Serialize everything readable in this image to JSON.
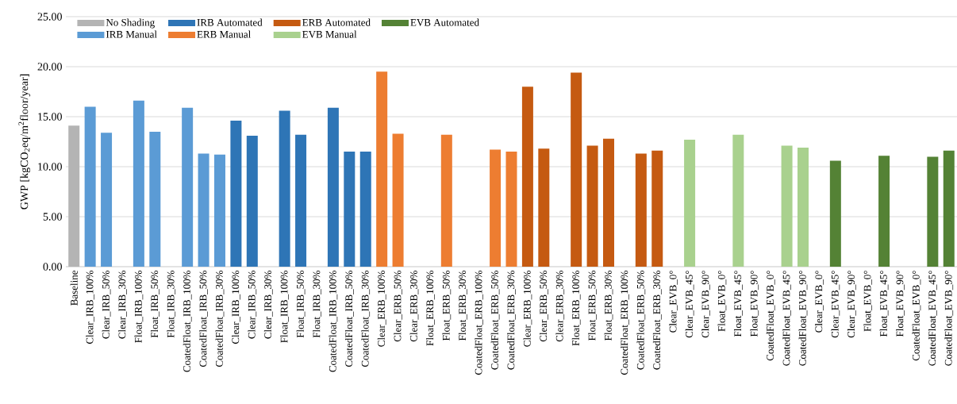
{
  "chart_data": {
    "type": "bar",
    "ylabel": "GWP [kgCO$_{2}$eq/m$^{2}$floor/year]",
    "categories": [
      "Baseline",
      "Clear_IRB_100%",
      "Clear_IRB_50%",
      "Clear_IRB_30%",
      "Float_IRB_100%",
      "Float_IRB_50%",
      "Float_IRB_30%",
      "CoatedFloat_IRB_100%",
      "CoatedFloat_IRB_50%",
      "CoatedFloat_IRB_30%",
      "Clear_IRB_100%",
      "Clear_IRB_50%",
      "Clear_IRB_30%",
      "Float_IRB_100%",
      "Float_IRB_50%",
      "Float_IRB_30%",
      "CoatedFloat_IRB_100%",
      "CoatedFloat_IRB_50%",
      "CoatedFloat_IRB_30%",
      "Clear_ERB_100%",
      "Clear_ERB_50%",
      "Clear_ERB_30%",
      "Float_ERB_100%",
      "Float_ERB_50%",
      "Float_ERB_30%",
      "CoatedFloat_ERB_100%",
      "CoatedFloat_ERB_50%",
      "CoatedFloat_ERB_30%",
      "Clear_ERB_100%",
      "Clear_ERB_50%",
      "Clear_ERB_30%",
      "Float_ERB_100%",
      "Float_ERB_50%",
      "Float_ERB_30%",
      "CoatedFloat_ERB_100%",
      "CoatedFloat_ERB_50%",
      "CoatedFloat_ERB_30%",
      "Clear_EVB_0°",
      "Clear_EVB_45°",
      "Clear_EVB_90°",
      "Float_EVB_0°",
      "Float_EVB_45°",
      "Float_EVB_90°",
      "CoatedFloat_EVB_0°",
      "CoatedFloat_EVB_45°",
      "CoatedFloat_EVB_90°",
      "Clear_EVB_0°",
      "Clear_EVB_45°",
      "Clear_EVB_90°",
      "Float_EVB_0°",
      "Float_EVB_45°",
      "Float_EVB_90°",
      "CoatedFloat_EVB_0°",
      "CoatedFloat_EVB_45°",
      "CoatedFloat_EVB_90°"
    ],
    "series": [
      {
        "name": "No Shading",
        "color": "#b4b4b4",
        "values": [
          14.1,
          null,
          null,
          null,
          null,
          null,
          null,
          null,
          null,
          null,
          null,
          null,
          null,
          null,
          null,
          null,
          null,
          null,
          null,
          null,
          null,
          null,
          null,
          null,
          null,
          null,
          null,
          null,
          null,
          null,
          null,
          null,
          null,
          null,
          null,
          null,
          null,
          null,
          null,
          null,
          null,
          null,
          null,
          null,
          null,
          null,
          null,
          null,
          null,
          null,
          null,
          null,
          null,
          null,
          null
        ]
      },
      {
        "name": "IRB Manual",
        "color": "#5b9bd5",
        "values": [
          null,
          16.0,
          13.4,
          null,
          16.6,
          13.5,
          null,
          15.9,
          11.3,
          11.2,
          null,
          null,
          null,
          null,
          null,
          null,
          null,
          null,
          null,
          null,
          null,
          null,
          null,
          null,
          null,
          null,
          null,
          null,
          null,
          null,
          null,
          null,
          null,
          null,
          null,
          null,
          null,
          null,
          null,
          null,
          null,
          null,
          null,
          null,
          null,
          null,
          null,
          null,
          null,
          null,
          null,
          null,
          null,
          null,
          null
        ]
      },
      {
        "name": "IRB Automated",
        "color": "#2e75b6",
        "values": [
          null,
          null,
          null,
          null,
          null,
          null,
          null,
          null,
          null,
          null,
          14.6,
          13.1,
          null,
          15.6,
          13.2,
          null,
          15.9,
          11.5,
          11.5,
          null,
          null,
          null,
          null,
          null,
          null,
          null,
          null,
          null,
          null,
          null,
          null,
          null,
          null,
          null,
          null,
          null,
          null,
          null,
          null,
          null,
          null,
          null,
          null,
          null,
          null,
          null,
          null,
          null,
          null,
          null,
          null,
          null,
          null,
          null,
          null
        ]
      },
      {
        "name": "ERB Manual",
        "color": "#ed7d31",
        "values": [
          null,
          null,
          null,
          null,
          null,
          null,
          null,
          null,
          null,
          null,
          null,
          null,
          null,
          null,
          null,
          null,
          null,
          null,
          null,
          19.5,
          13.3,
          null,
          null,
          13.2,
          null,
          null,
          11.7,
          11.5,
          null,
          null,
          null,
          null,
          null,
          null,
          null,
          null,
          null,
          null,
          null,
          null,
          null,
          null,
          null,
          null,
          null,
          null,
          null,
          null,
          null,
          null,
          null,
          null,
          null,
          null,
          null
        ]
      },
      {
        "name": "ERB Automated",
        "color": "#c55a11",
        "values": [
          null,
          null,
          null,
          null,
          null,
          null,
          null,
          null,
          null,
          null,
          null,
          null,
          null,
          null,
          null,
          null,
          null,
          null,
          null,
          null,
          null,
          null,
          null,
          null,
          null,
          null,
          null,
          null,
          18.0,
          11.8,
          null,
          19.4,
          12.1,
          12.8,
          null,
          11.3,
          11.6,
          null,
          null,
          null,
          null,
          null,
          null,
          null,
          null,
          null,
          null,
          null,
          null,
          null,
          null,
          null,
          null,
          null,
          null
        ]
      },
      {
        "name": "EVB Manual",
        "color": "#a9d18e",
        "values": [
          null,
          null,
          null,
          null,
          null,
          null,
          null,
          null,
          null,
          null,
          null,
          null,
          null,
          null,
          null,
          null,
          null,
          null,
          null,
          null,
          null,
          null,
          null,
          null,
          null,
          null,
          null,
          null,
          null,
          null,
          null,
          null,
          null,
          null,
          null,
          null,
          null,
          null,
          12.7,
          null,
          null,
          13.2,
          null,
          null,
          12.1,
          11.9,
          null,
          null,
          null,
          null,
          null,
          null,
          null,
          null,
          null
        ]
      },
      {
        "name": "EVB Automated",
        "color": "#548235",
        "values": [
          null,
          null,
          null,
          null,
          null,
          null,
          null,
          null,
          null,
          null,
          null,
          null,
          null,
          null,
          null,
          null,
          null,
          null,
          null,
          null,
          null,
          null,
          null,
          null,
          null,
          null,
          null,
          null,
          null,
          null,
          null,
          null,
          null,
          null,
          null,
          null,
          null,
          null,
          null,
          null,
          null,
          null,
          null,
          null,
          null,
          null,
          null,
          10.6,
          null,
          null,
          11.1,
          null,
          null,
          11.0,
          11.6
        ]
      }
    ],
    "ylim": [
      0,
      25
    ],
    "yticks": [
      {
        "value": 0,
        "label": "0.00"
      },
      {
        "value": 5,
        "label": "5.00"
      },
      {
        "value": 10,
        "label": "10.00"
      },
      {
        "value": 15,
        "label": "15.00"
      },
      {
        "value": 20,
        "label": "20.00"
      },
      {
        "value": 25,
        "label": "25.00"
      }
    ],
    "grid": "y",
    "legend": "top"
  }
}
